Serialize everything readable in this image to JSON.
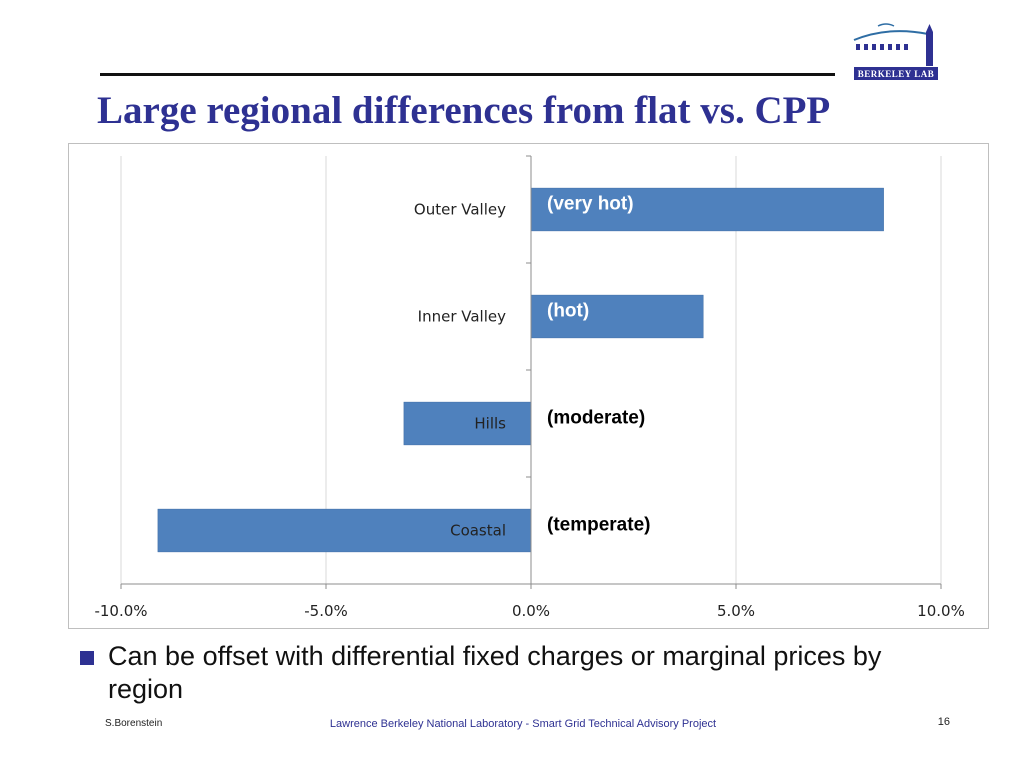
{
  "slide": {
    "title": "Large regional differences from flat vs. CPP",
    "bullet": "Can be offset with differential fixed charges or marginal prices by region",
    "footer_left": "S.Borenstein",
    "footer_center": "Lawrence Berkeley National Laboratory - Smart Grid Technical Advisory Project",
    "page_number": "16",
    "logo_text": "BERKELEY LAB"
  },
  "colors": {
    "title": "#2e3192",
    "bar": "#4f81bd",
    "bar_stroke": "#3a6aa3",
    "gridline": "#d9d9d9",
    "footer_center": "#2e3192"
  },
  "chart_data": {
    "type": "bar",
    "orientation": "horizontal",
    "categories": [
      "Outer Valley",
      "Inner Valley",
      "Hills",
      "Coastal"
    ],
    "values": [
      8.6,
      4.2,
      -3.1,
      -9.1
    ],
    "annotations": [
      "(very hot)",
      "(hot)",
      "(moderate)",
      "(temperate)"
    ],
    "annotation_colors": [
      "#ffffff",
      "#ffffff",
      "#000000",
      "#000000"
    ],
    "xlim": [
      -10.0,
      10.0
    ],
    "xticks": [
      -10,
      -5,
      0,
      5,
      10
    ],
    "xtick_labels": [
      "-10.0%",
      "-5.0%",
      "0.0%",
      "5.0%",
      "10.0%"
    ],
    "grid": true,
    "legend": "none"
  }
}
